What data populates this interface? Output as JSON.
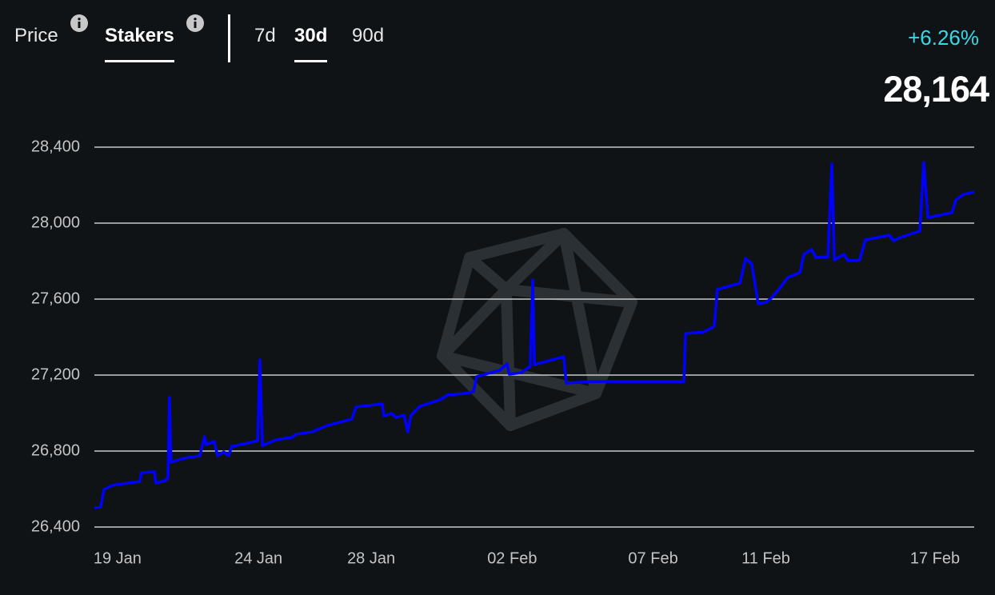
{
  "tabs": [
    "Price",
    "Stakers"
  ],
  "ranges": [
    "7d",
    "30d",
    "90d"
  ],
  "change": "+6.26%",
  "current": "28,164",
  "chart_data": {
    "type": "line",
    "color": "#0000ff",
    "grid": true,
    "x": [
      -0.82,
      -0.6,
      -0.48,
      -0.2,
      0.79,
      0.85,
      1.31,
      1.36,
      1.7,
      1.79,
      1.84,
      1.9,
      2.36,
      2.92,
      3.09,
      3.15,
      3.43,
      3.55,
      3.77,
      3.94,
      4.06,
      4.63,
      4.97,
      5.05,
      5.14,
      5.62,
      6.19,
      6.33,
      6.9,
      7.46,
      8.31,
      8.46,
      9.39,
      9.45,
      9.73,
      9.88,
      10.16,
      10.3,
      10.41,
      10.73,
      11.44,
      11.72,
      12.29,
      12.63,
      12.74,
      13.56,
      13.82,
      13.9,
      14.33,
      14.64,
      14.73,
      14.79,
      15.83,
      15.92,
      16.83,
      20.09,
      20.15,
      20.8,
      21.17,
      21.28,
      22.08,
      22.28,
      22.5,
      22.73,
      23.01,
      23.21,
      23.5,
      23.78,
      24.21,
      24.35,
      24.63,
      24.77,
      25.2,
      25.34,
      25.43,
      25.77,
      25.91,
      26.33,
      26.53,
      27.38,
      27.53,
      27.75,
      28.18,
      28.46,
      28.6,
      28.75,
      29.6,
      29.74,
      30.02,
      30.39
    ],
    "values": [
      26501,
      26505,
      26598,
      26619,
      26640,
      26686,
      26691,
      26632,
      26644,
      26661,
      27082,
      26741,
      26762,
      26775,
      26876,
      26834,
      26851,
      26775,
      26796,
      26775,
      26825,
      26842,
      26855,
      27280,
      26829,
      26859,
      26872,
      26888,
      26901,
      26935,
      26968,
      27032,
      27048,
      26985,
      26998,
      26977,
      26989,
      26901,
      26989,
      27036,
      27070,
      27095,
      27103,
      27112,
      27192,
      27225,
      27259,
      27204,
      27213,
      27246,
      27701,
      27255,
      27297,
      27158,
      27166,
      27166,
      27419,
      27427,
      27457,
      27651,
      27684,
      27815,
      27785,
      27575,
      27583,
      27608,
      27659,
      27714,
      27739,
      27836,
      27861,
      27819,
      27823,
      28312,
      27806,
      27836,
      27802,
      27806,
      27912,
      27937,
      27907,
      27924,
      27945,
      27958,
      28320,
      28029,
      28055,
      28122,
      28152,
      28164
    ],
    "xlim": [
      -0.82,
      30.39
    ],
    "xticks": [
      {
        "value": 0,
        "label": "19 Jan"
      },
      {
        "value": 5,
        "label": "24 Jan"
      },
      {
        "value": 9,
        "label": "28 Jan"
      },
      {
        "value": 14,
        "label": "02 Feb"
      },
      {
        "value": 19,
        "label": "07 Feb"
      },
      {
        "value": 23,
        "label": "11 Feb"
      },
      {
        "value": 29,
        "label": "17 Feb"
      }
    ],
    "ylim": [
      26400,
      28400
    ],
    "yticks": [
      {
        "value": 26400,
        "label": "26,400"
      },
      {
        "value": 26800,
        "label": "26,800"
      },
      {
        "value": 27200,
        "label": "27,200"
      },
      {
        "value": 27600,
        "label": "27,600"
      },
      {
        "value": 28000,
        "label": "28,000"
      },
      {
        "value": 28400,
        "label": "28,400"
      }
    ]
  }
}
